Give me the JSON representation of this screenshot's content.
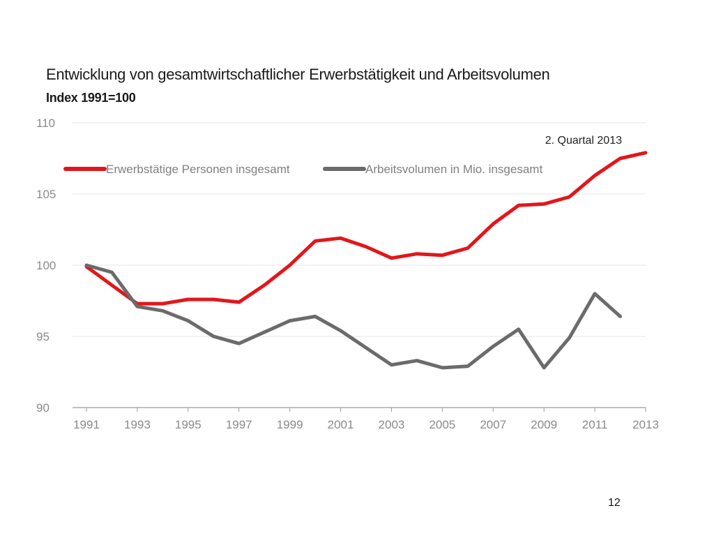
{
  "slide": {
    "title": "Entwicklung von gesamtwirtschaftlicher Erwerbstätigkeit und Arbeitsvolumen",
    "subtitle": "Index 1991=100",
    "page_number": "12"
  },
  "colors": {
    "series_red": "#e3161b",
    "series_gray": "#6b6b6b",
    "grid": "#e6e6e6",
    "tick_text": "#8a8a8a"
  },
  "chart_data": {
    "type": "line",
    "title": "Entwicklung von gesamtwirtschaftlicher Erwerbstätigkeit und Arbeitsvolumen",
    "subtitle": "Index 1991=100",
    "xlabel": "",
    "ylabel": "",
    "xlim": [
      1991,
      2013
    ],
    "ylim": [
      90,
      110
    ],
    "x_tick_labels": [
      "1991",
      "1993",
      "1995",
      "1997",
      "1999",
      "2001",
      "2003",
      "2005",
      "2007",
      "2009",
      "2011",
      "2013"
    ],
    "y_tick_labels": [
      "90",
      "95",
      "100",
      "105",
      "110"
    ],
    "grid": true,
    "legend_position": "top",
    "annotation": "2. Quartal 2013",
    "series": [
      {
        "name": "Erwerbstätige Personen insgesamt",
        "color": "#e3161b",
        "x": [
          1991,
          1992,
          1993,
          1994,
          1995,
          1996,
          1997,
          1998,
          1999,
          2000,
          2001,
          2002,
          2003,
          2004,
          2005,
          2006,
          2007,
          2008,
          2009,
          2010,
          2011,
          2012,
          2013
        ],
        "values": [
          99.9,
          98.6,
          97.3,
          97.3,
          97.6,
          97.6,
          97.4,
          98.6,
          100.0,
          101.7,
          101.9,
          101.3,
          100.5,
          100.8,
          100.7,
          101.2,
          102.9,
          104.2,
          104.3,
          104.8,
          106.3,
          107.5,
          107.9
        ]
      },
      {
        "name": "Arbeitsvolumen in Mio. insgesamt",
        "color": "#6b6b6b",
        "x": [
          1991,
          1992,
          1993,
          1994,
          1995,
          1996,
          1997,
          1998,
          1999,
          2000,
          2001,
          2002,
          2003,
          2004,
          2005,
          2006,
          2007,
          2008,
          2009,
          2010,
          2011,
          2012
        ],
        "values": [
          100.0,
          99.5,
          97.1,
          96.8,
          96.1,
          95.0,
          94.5,
          95.3,
          96.1,
          96.4,
          95.4,
          94.2,
          93.0,
          93.3,
          92.8,
          92.9,
          94.3,
          95.5,
          92.8,
          94.9,
          98.0,
          96.4
        ]
      }
    ]
  }
}
